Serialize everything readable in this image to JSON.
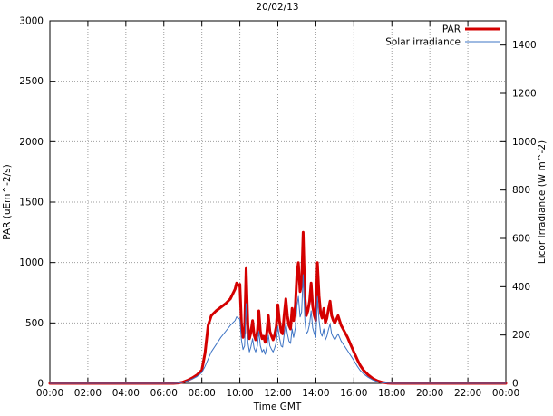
{
  "chart_data": {
    "type": "line",
    "title": "20/02/13",
    "xlabel": "Time GMT",
    "ylabel_left": "PAR (uEm^-2/s)",
    "ylabel_right": "Licor Irradiance (W m^-2)",
    "grid": true,
    "legend_position": "top-right-inside",
    "x_tick_hours": [
      0,
      2,
      4,
      6,
      8,
      10,
      12,
      14,
      16,
      18,
      20,
      22,
      24
    ],
    "x_tick_labels": [
      "00:00",
      "02:00",
      "04:00",
      "06:00",
      "08:00",
      "10:00",
      "12:00",
      "14:00",
      "16:00",
      "18:00",
      "20:00",
      "22:00",
      "00:00"
    ],
    "ylim_left": [
      0,
      3000
    ],
    "yticks_left": [
      0,
      500,
      1000,
      1500,
      2000,
      2500,
      3000
    ],
    "ylim_right": [
      0,
      1500
    ],
    "yticks_right": [
      0,
      200,
      400,
      600,
      800,
      1000,
      1200,
      1400
    ],
    "grid_color": "#9e9e9e",
    "border_color": "#000000",
    "x": [
      0,
      2,
      4,
      6,
      6.5,
      6.75,
      7,
      7.25,
      7.5,
      7.75,
      8,
      8.17,
      8.33,
      8.5,
      8.75,
      9,
      9.25,
      9.5,
      9.75,
      9.83,
      9.92,
      10,
      10.08,
      10.17,
      10.25,
      10.33,
      10.42,
      10.5,
      10.58,
      10.67,
      10.75,
      10.83,
      10.92,
      11,
      11.08,
      11.17,
      11.25,
      11.33,
      11.42,
      11.5,
      11.58,
      11.67,
      11.75,
      11.83,
      11.92,
      12,
      12.08,
      12.17,
      12.25,
      12.33,
      12.42,
      12.5,
      12.58,
      12.67,
      12.75,
      12.83,
      12.92,
      13,
      13.08,
      13.17,
      13.25,
      13.33,
      13.42,
      13.5,
      13.58,
      13.67,
      13.75,
      13.83,
      13.92,
      14,
      14.08,
      14.17,
      14.25,
      14.33,
      14.42,
      14.5,
      14.58,
      14.67,
      14.75,
      14.83,
      14.92,
      15,
      15.17,
      15.33,
      15.5,
      15.67,
      15.83,
      16,
      16.17,
      16.33,
      16.5,
      16.75,
      17,
      17.25,
      17.5,
      17.75,
      18,
      19,
      20,
      22,
      24
    ],
    "series": [
      {
        "name": "PAR",
        "axis": "left",
        "color": "#d40000",
        "width": 3,
        "values": [
          0,
          0,
          0,
          0,
          0,
          3,
          10,
          25,
          45,
          70,
          110,
          250,
          480,
          560,
          600,
          630,
          660,
          700,
          780,
          830,
          810,
          820,
          500,
          380,
          420,
          950,
          480,
          370,
          420,
          520,
          400,
          360,
          430,
          600,
          430,
          370,
          390,
          340,
          420,
          560,
          430,
          390,
          360,
          400,
          470,
          650,
          520,
          430,
          410,
          560,
          700,
          560,
          480,
          450,
          620,
          520,
          640,
          900,
          1000,
          760,
          820,
          1250,
          720,
          560,
          600,
          680,
          830,
          640,
          560,
          520,
          1000,
          720,
          580,
          540,
          620,
          500,
          540,
          620,
          680,
          560,
          520,
          500,
          560,
          480,
          430,
          380,
          320,
          260,
          200,
          150,
          110,
          70,
          40,
          20,
          8,
          2,
          0,
          0,
          0,
          0,
          0
        ]
      },
      {
        "name": "Solar irradiance",
        "axis": "right",
        "color": "#3e74c4",
        "width": 1,
        "values": [
          0,
          0,
          0,
          0,
          0,
          1,
          4,
          10,
          18,
          28,
          45,
          70,
          100,
          130,
          160,
          190,
          215,
          240,
          260,
          275,
          270,
          265,
          180,
          140,
          155,
          330,
          170,
          130,
          150,
          185,
          145,
          130,
          155,
          215,
          155,
          130,
          140,
          120,
          150,
          200,
          155,
          140,
          130,
          145,
          170,
          235,
          190,
          155,
          150,
          200,
          250,
          205,
          175,
          165,
          225,
          190,
          230,
          320,
          360,
          275,
          295,
          450,
          260,
          205,
          215,
          245,
          300,
          230,
          205,
          190,
          360,
          260,
          210,
          195,
          225,
          180,
          195,
          225,
          245,
          205,
          190,
          180,
          205,
          175,
          155,
          135,
          115,
          95,
          72,
          54,
          40,
          25,
          14,
          7,
          3,
          1,
          0,
          0,
          0,
          0,
          0
        ]
      }
    ]
  }
}
